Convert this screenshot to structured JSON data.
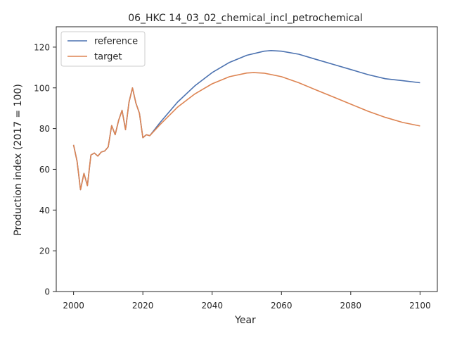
{
  "chart_data": {
    "type": "line",
    "title": "06_HKC 14_03_02_chemical_incl_petrochemical",
    "xlabel": "Year",
    "ylabel": "Production index (2017 = 100)",
    "xlim": [
      1995,
      2105
    ],
    "ylim": [
      0,
      130
    ],
    "xticks": [
      2000,
      2020,
      2040,
      2060,
      2080,
      2100
    ],
    "yticks": [
      0,
      20,
      40,
      60,
      80,
      100,
      120
    ],
    "grid": false,
    "legend": "top-left",
    "series": [
      {
        "name": "reference",
        "color": "#4c72b0",
        "x": [
          2000,
          2001,
          2002,
          2003,
          2004,
          2005,
          2006,
          2007,
          2008,
          2009,
          2010,
          2011,
          2012,
          2013,
          2014,
          2015,
          2016,
          2017,
          2018,
          2019,
          2020,
          2021,
          2022,
          2025,
          2030,
          2035,
          2040,
          2045,
          2050,
          2055,
          2057,
          2060,
          2065,
          2070,
          2075,
          2080,
          2085,
          2090,
          2095,
          2100
        ],
        "y": [
          72,
          64,
          50,
          58,
          52,
          67,
          68,
          66.5,
          68.5,
          69,
          71,
          81.5,
          77,
          84,
          89,
          79.5,
          93,
          100,
          92.5,
          87.5,
          75.5,
          77,
          76.5,
          83,
          93,
          101,
          107.5,
          112.5,
          116,
          118,
          118.3,
          118,
          116.5,
          114,
          111.5,
          109,
          106.5,
          104.5,
          103.5,
          102.5
        ]
      },
      {
        "name": "target",
        "color": "#dd8452",
        "x": [
          2000,
          2001,
          2002,
          2003,
          2004,
          2005,
          2006,
          2007,
          2008,
          2009,
          2010,
          2011,
          2012,
          2013,
          2014,
          2015,
          2016,
          2017,
          2018,
          2019,
          2020,
          2021,
          2022,
          2025,
          2030,
          2035,
          2040,
          2045,
          2050,
          2052,
          2055,
          2060,
          2065,
          2070,
          2075,
          2080,
          2085,
          2090,
          2095,
          2100
        ],
        "y": [
          72,
          64,
          50,
          58,
          52,
          67,
          68,
          66.5,
          68.5,
          69,
          71,
          81.5,
          77,
          84,
          89,
          79.5,
          93,
          100,
          92.5,
          87.5,
          75.5,
          77,
          76.5,
          82,
          90.5,
          97,
          102,
          105.5,
          107.3,
          107.5,
          107.2,
          105.5,
          102.5,
          99,
          95.5,
          92,
          88.5,
          85.5,
          83,
          81.3
        ]
      }
    ]
  }
}
